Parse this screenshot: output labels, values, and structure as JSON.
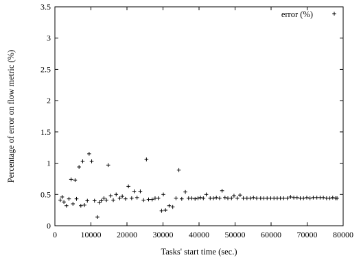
{
  "chart_data": {
    "type": "scatter",
    "title": "",
    "xlabel": "Tasks' start time (sec.)",
    "ylabel": "Percentage of error on flow metric (%)",
    "xlim": [
      0,
      80000
    ],
    "ylim": [
      0,
      3.5
    ],
    "xticks": [
      0,
      10000,
      20000,
      30000,
      40000,
      50000,
      60000,
      70000,
      80000
    ],
    "yticks": [
      0,
      0.5,
      1,
      1.5,
      2,
      2.5,
      3,
      3.5
    ],
    "grid": false,
    "legend_position": "top-right",
    "series": [
      {
        "name": "error (%)",
        "marker": "+",
        "color": "#000000",
        "x": [
          1500,
          2000,
          2500,
          3200,
          3900,
          4500,
          5000,
          5600,
          6000,
          6700,
          7200,
          7700,
          8200,
          9000,
          9500,
          10200,
          11000,
          11800,
          12300,
          12900,
          13600,
          14300,
          14800,
          15500,
          16200,
          17000,
          18000,
          18700,
          19600,
          20400,
          21300,
          22000,
          22800,
          23700,
          24600,
          25400,
          26000,
          27000,
          27800,
          28700,
          29600,
          30100,
          30700,
          31700,
          32700,
          33600,
          34400,
          35200,
          36200,
          37100,
          38000,
          38900,
          39700,
          40400,
          41200,
          42000,
          43100,
          44000,
          44800,
          45700,
          46400,
          47200,
          48000,
          49000,
          49700,
          50600,
          51400,
          52300,
          53300,
          54200,
          55100,
          56000,
          57100,
          58000,
          58900,
          59900,
          60800,
          61700,
          62600,
          63500,
          64500,
          65400,
          66300,
          67200,
          68100,
          69000,
          69900,
          70800,
          71700,
          72700,
          73600,
          74500,
          75400,
          76300,
          77100,
          77900,
          78300
        ],
        "y": [
          0.41,
          0.46,
          0.38,
          0.32,
          0.43,
          0.74,
          0.35,
          0.73,
          0.43,
          0.94,
          0.32,
          1.03,
          0.33,
          0.4,
          1.15,
          1.03,
          0.4,
          0.14,
          0.37,
          0.4,
          0.44,
          0.41,
          0.97,
          0.48,
          0.41,
          0.5,
          0.44,
          0.47,
          0.43,
          0.63,
          0.44,
          0.55,
          0.45,
          0.55,
          0.41,
          1.06,
          0.42,
          0.42,
          0.44,
          0.44,
          0.24,
          0.5,
          0.25,
          0.32,
          0.3,
          0.44,
          0.89,
          0.43,
          0.54,
          0.44,
          0.44,
          0.43,
          0.44,
          0.45,
          0.44,
          0.5,
          0.44,
          0.44,
          0.45,
          0.44,
          0.56,
          0.45,
          0.44,
          0.44,
          0.48,
          0.44,
          0.49,
          0.44,
          0.44,
          0.44,
          0.45,
          0.44,
          0.44,
          0.44,
          0.44,
          0.44,
          0.44,
          0.44,
          0.44,
          0.44,
          0.44,
          0.46,
          0.45,
          0.45,
          0.44,
          0.44,
          0.45,
          0.44,
          0.45,
          0.45,
          0.45,
          0.45,
          0.44,
          0.44,
          0.45,
          0.44,
          0.44
        ]
      }
    ]
  }
}
